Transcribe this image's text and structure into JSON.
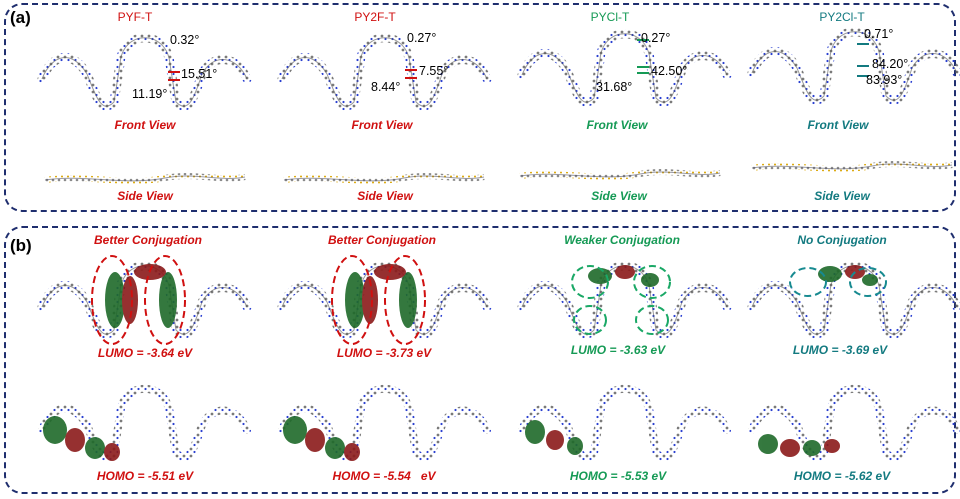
{
  "panel_a": {
    "label": "(a)",
    "molecules": [
      {
        "name": "PYF-T",
        "angle_1": "0.32°",
        "angle_2": "15.51°",
        "angle_3": "11.19°",
        "front": "Front View",
        "side": "Side View",
        "color": "#d01010"
      },
      {
        "name": "PY2F-T",
        "angle_1": "0.27°",
        "angle_2": "7.55°",
        "angle_3": "8.44°",
        "front": "Front View",
        "side": "Side View",
        "color": "#d01010"
      },
      {
        "name": "PYCl-T",
        "angle_1": "0.27°",
        "angle_2": "42.50°",
        "angle_3": "31.68°",
        "front": "Front View",
        "side": "Side View",
        "color": "#159a55"
      },
      {
        "name": "PY2Cl-T",
        "angle_1": "0.71°",
        "angle_2": "84.20°",
        "angle_3": "83.93°",
        "front": "Front View",
        "side": "Side View",
        "color": "#137a80"
      }
    ]
  },
  "panel_b": {
    "label": "(b)",
    "molecules": [
      {
        "conjugation": "Better Conjugation",
        "lumo": "LUMO = -3.64 eV",
        "homo": "HOMO = -5.51 eV",
        "color": "#d01010"
      },
      {
        "conjugation": "Better Conjugation",
        "lumo": "LUMO = -3.73 eV",
        "homo": "HOMO = -5.54   eV",
        "color": "#d01010"
      },
      {
        "conjugation": "Weaker Conjugation",
        "lumo": "LUMO = -3.63 eV",
        "homo": "HOMO = -5.53 eV",
        "color": "#159a55"
      },
      {
        "conjugation": "No Conjugation",
        "lumo": "LUMO = -3.69 eV",
        "homo": "HOMO = -5.62 eV",
        "color": "#137a80"
      }
    ]
  }
}
